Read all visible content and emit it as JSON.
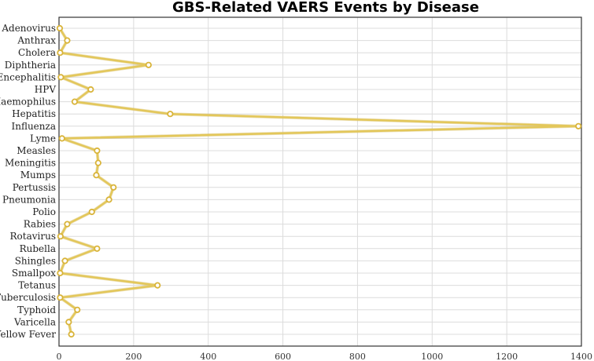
{
  "chart_data": {
    "type": "line",
    "orientation": "horizontal",
    "title": "GBS-Related VAERS Events by Disease",
    "categories": [
      "Adenovirus",
      "Anthrax",
      "Cholera",
      "Diphtheria",
      "Encephalitis",
      "HPV",
      "Haemophilus",
      "Hepatitis",
      "Influenza",
      "Lyme",
      "Measles",
      "Meningitis",
      "Mumps",
      "Pertussis",
      "Pneumonia",
      "Polio",
      "Rabies",
      "Rotavirus",
      "Rubella",
      "Shingles",
      "Smallpox",
      "Tetanus",
      "Tuberculosis",
      "Typhoid",
      "Varicella",
      "Yellow Fever"
    ],
    "series": [
      {
        "values": [
          2,
          22,
          3,
          240,
          5,
          85,
          42,
          298,
          1392,
          8,
          102,
          105,
          100,
          146,
          134,
          88,
          22,
          4,
          102,
          16,
          3,
          264,
          3,
          49,
          26,
          33
        ]
      }
    ],
    "xlim": [
      0,
      1400
    ],
    "xticks": [
      0,
      200,
      400,
      600,
      800,
      1000,
      1200,
      1400
    ],
    "grid": true,
    "legend": "none",
    "colors": {
      "line": "#e3c75a",
      "line_shadow": "#c9a83a",
      "marker_fill": "#ffffff",
      "marker_stroke": "#d9b43a"
    }
  }
}
